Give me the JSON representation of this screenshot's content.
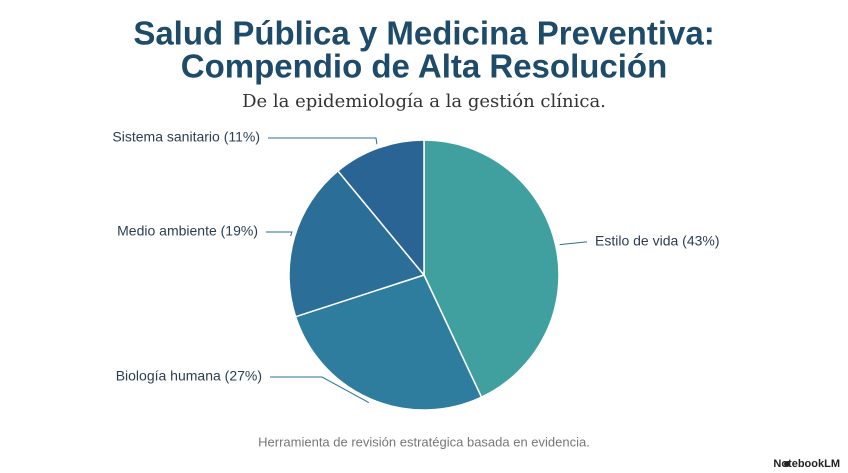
{
  "chart_data": {
    "type": "pie",
    "title": "Salud Pública y Medicina Preventiva:",
    "title_line2": "Compendio de Alta Resolución",
    "subtitle": "De la epidemiología a la gestión clínica.",
    "categories": [
      "Estilo de vida (43%)",
      "Biología humana (27%)",
      "Medio ambiente (19%)",
      "Sistema sanitario (11%)"
    ],
    "values": [
      43,
      27,
      19,
      11
    ],
    "colors": [
      "#3fa09f",
      "#2e7d9f",
      "#2b6f99",
      "#2a6494"
    ],
    "footer": "Herramienta de revisión estratégica basada en evidencia.",
    "brand": "NotebookLM"
  }
}
